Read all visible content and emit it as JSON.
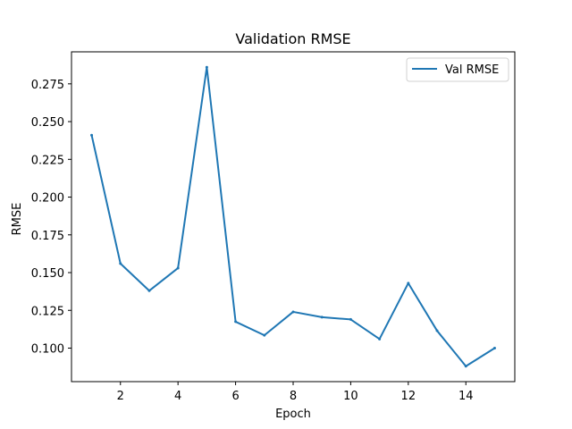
{
  "chart_data": {
    "type": "line",
    "title": "Validation RMSE",
    "xlabel": "Epoch",
    "ylabel": "RMSE",
    "xlim": [
      0.3,
      15.7
    ],
    "ylim": [
      0.0778,
      0.2962
    ],
    "xticks": [
      2,
      4,
      6,
      8,
      10,
      12,
      14
    ],
    "yticks": [
      0.1,
      0.125,
      0.15,
      0.175,
      0.2,
      0.225,
      0.25,
      0.275
    ],
    "ytick_labels": [
      "0.100",
      "0.125",
      "0.150",
      "0.175",
      "0.200",
      "0.225",
      "0.250",
      "0.275"
    ],
    "grid": false,
    "legend_position": "top-right",
    "x": [
      1,
      2,
      3,
      4,
      5,
      6,
      7,
      8,
      9,
      10,
      11,
      12,
      13,
      14,
      15
    ],
    "series": [
      {
        "name": "Val RMSE",
        "color": "#1f77b4",
        "values": [
          0.241,
          0.156,
          0.138,
          0.153,
          0.286,
          0.1175,
          0.1085,
          0.124,
          0.1205,
          0.119,
          0.106,
          0.143,
          0.1115,
          0.088,
          0.1
        ]
      }
    ]
  }
}
